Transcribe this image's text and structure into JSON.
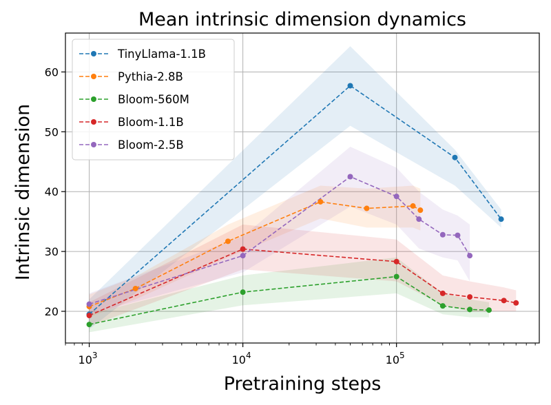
{
  "chart_data": {
    "type": "line",
    "title": "Mean intrinsic dimension dynamics",
    "xlabel": "Pretraining steps",
    "ylabel": "Intrinsic dimension",
    "xscale": "log",
    "xlim": [
      700,
      850000
    ],
    "ylim": [
      14.7,
      66.5
    ],
    "x_ticks": [
      {
        "value": 1000,
        "base": "10",
        "exp": "3"
      },
      {
        "value": 10000,
        "base": "10",
        "exp": "4"
      },
      {
        "value": 100000,
        "base": "10",
        "exp": "5"
      }
    ],
    "y_ticks": [
      20,
      30,
      40,
      50,
      60
    ],
    "grid": true,
    "legend_position": "top-left",
    "series": [
      {
        "name": "TinyLlama-1.1B",
        "color": "#1f77b4",
        "x": [
          1000,
          50000,
          240000,
          480000
        ],
        "values": [
          19.5,
          57.7,
          45.7,
          35.4
        ],
        "band_low": [
          17.0,
          51.0,
          41.0,
          34.0
        ],
        "band_high": [
          22.0,
          64.3,
          47.0,
          37.0
        ]
      },
      {
        "name": "Pythia-2.8B",
        "color": "#ff7f0e",
        "x": [
          1000,
          2000,
          8000,
          32000,
          64000,
          128000,
          143000
        ],
        "values": [
          20.8,
          23.8,
          31.7,
          38.3,
          37.2,
          37.6,
          36.9
        ],
        "band_low": [
          19.0,
          22.0,
          29.0,
          35.5,
          34.0,
          34.0,
          33.5
        ],
        "band_high": [
          22.8,
          25.8,
          34.5,
          41.0,
          40.5,
          41.0,
          40.5
        ]
      },
      {
        "name": "Bloom-560M",
        "color": "#2ca02c",
        "x": [
          1000,
          10000,
          100000,
          200000,
          300000,
          400000
        ],
        "values": [
          17.8,
          23.2,
          25.8,
          20.9,
          20.3,
          20.2
        ],
        "band_low": [
          16.5,
          21.0,
          23.0,
          19.5,
          19.0,
          19.0
        ],
        "band_high": [
          19.5,
          26.0,
          29.0,
          23.0,
          22.0,
          21.5
        ]
      },
      {
        "name": "Bloom-1.1B",
        "color": "#d62728",
        "x": [
          1000,
          10000,
          100000,
          200000,
          300000,
          500000,
          600000
        ],
        "values": [
          19.3,
          30.4,
          28.3,
          23.0,
          22.4,
          21.8,
          21.4
        ],
        "band_low": [
          17.5,
          27.0,
          25.0,
          21.0,
          20.0,
          20.0,
          20.0
        ],
        "band_high": [
          21.5,
          34.5,
          32.0,
          26.0,
          25.0,
          24.0,
          23.5
        ]
      },
      {
        "name": "Bloom-2.5B",
        "color": "#9467bd",
        "x": [
          1000,
          10000,
          50000,
          100000,
          140000,
          200000,
          250000,
          300000
        ],
        "values": [
          21.2,
          29.3,
          42.5,
          39.2,
          35.4,
          32.8,
          32.7,
          29.3
        ],
        "band_low": [
          19.5,
          26.5,
          37.5,
          34.5,
          30.5,
          29.0,
          28.5,
          25.0
        ],
        "band_high": [
          23.0,
          32.5,
          47.5,
          44.0,
          40.0,
          37.0,
          36.0,
          34.5
        ]
      }
    ]
  }
}
